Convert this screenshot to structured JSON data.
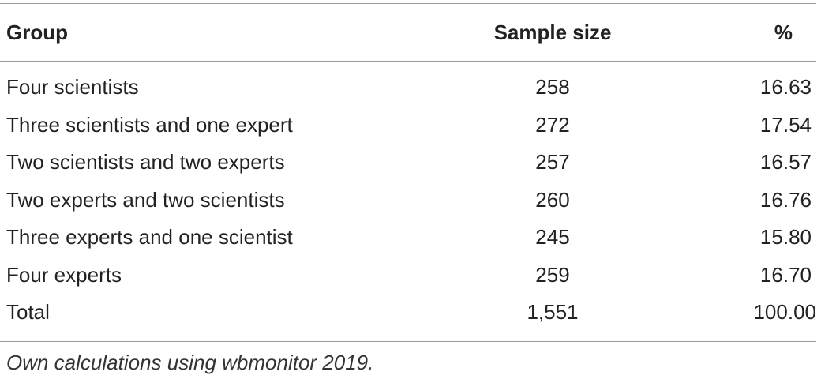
{
  "table": {
    "headers": {
      "group": "Group",
      "sample_size": "Sample size",
      "percent": "%"
    },
    "rows": [
      {
        "group": "Four scientists",
        "sample_size": "258",
        "percent": "16.63"
      },
      {
        "group": "Three scientists and one expert",
        "sample_size": "272",
        "percent": "17.54"
      },
      {
        "group": "Two scientists and two experts",
        "sample_size": "257",
        "percent": "16.57"
      },
      {
        "group": "Two experts and two scientists",
        "sample_size": "260",
        "percent": "16.76"
      },
      {
        "group": "Three experts and one scientist",
        "sample_size": "245",
        "percent": "15.80"
      },
      {
        "group": "Four experts",
        "sample_size": "259",
        "percent": "16.70"
      },
      {
        "group": "Total",
        "sample_size": "1,551",
        "percent": "100.00"
      }
    ]
  },
  "footnote": "Own calculations using wbmonitor 2019."
}
